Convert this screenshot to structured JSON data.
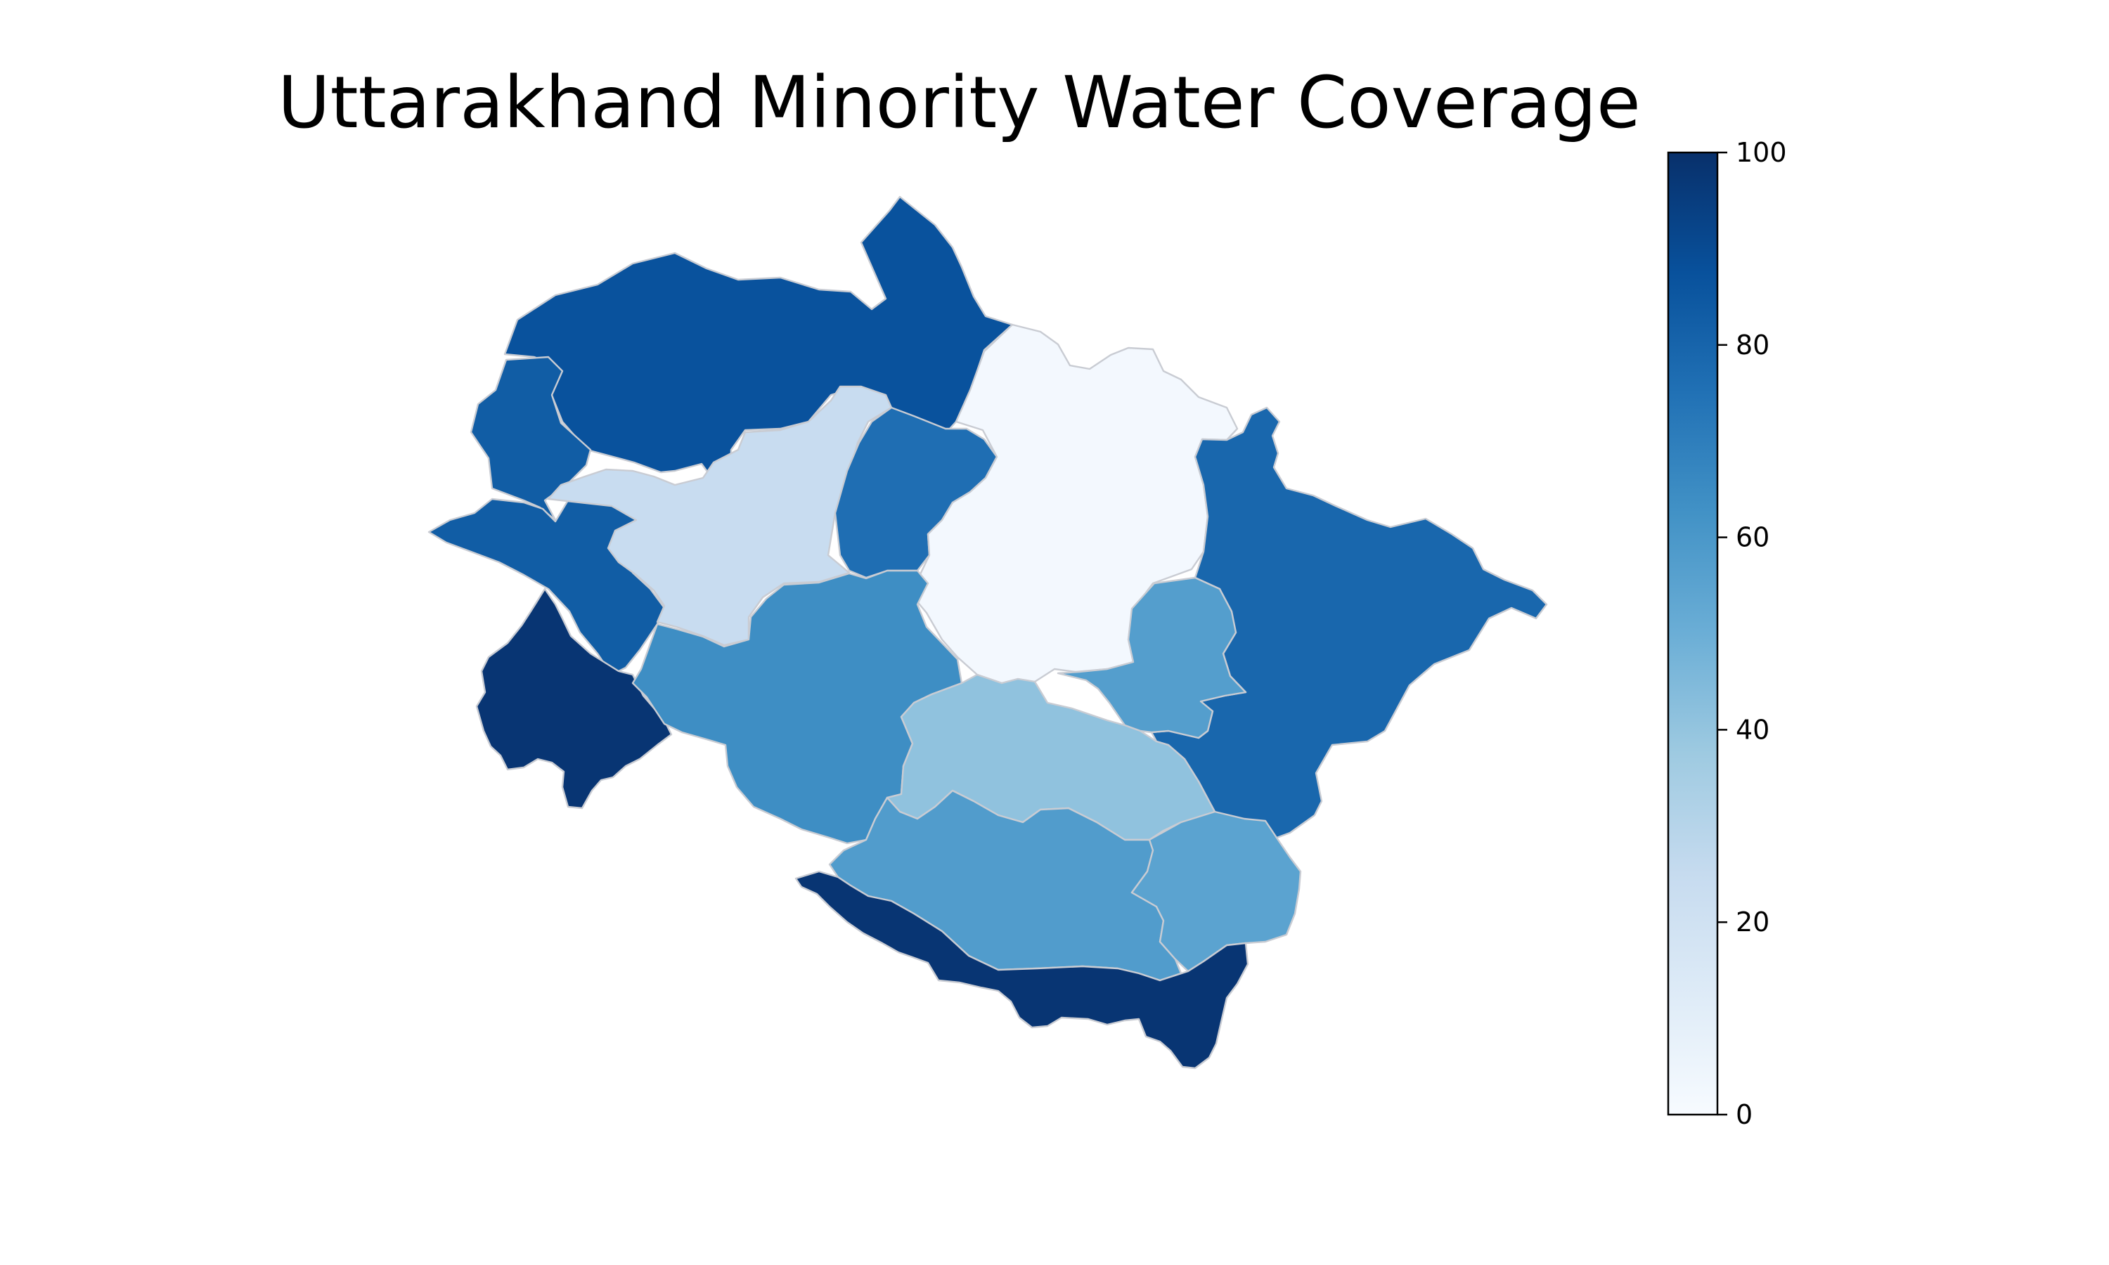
{
  "title": "Uttarakhand Minority Water Coverage",
  "colormap": "Blues",
  "value_range": [
    0,
    100
  ],
  "border_color": "#c9ccd3",
  "colorbar": {
    "orientation": "vertical",
    "position": "right",
    "ticks": [
      0,
      20,
      40,
      60,
      80,
      100
    ],
    "tick_labels": [
      "0",
      "20",
      "40",
      "60",
      "80",
      "100"
    ],
    "gradient": [
      "#f7fbff",
      "#deebf7",
      "#c6dbef",
      "#9ecae1",
      "#6baed6",
      "#4292c6",
      "#2171b5",
      "#08519c",
      "#08306b"
    ]
  },
  "regions": [
    {
      "id": "north-west-large",
      "value": 87
    },
    {
      "id": "far-west-upper",
      "value": 83
    },
    {
      "id": "far-west-middle",
      "value": 83
    },
    {
      "id": "west-light",
      "value": 24
    },
    {
      "id": "center-north-strip",
      "value": 76
    },
    {
      "id": "north-east-white",
      "value": 2
    },
    {
      "id": "east-large",
      "value": 79
    },
    {
      "id": "south-west-dark",
      "value": 98
    },
    {
      "id": "central-mid",
      "value": 64
    },
    {
      "id": "east-central-small",
      "value": 57
    },
    {
      "id": "central-south-pale",
      "value": 41
    },
    {
      "id": "south-central",
      "value": 58
    },
    {
      "id": "south-east-mid",
      "value": 55
    },
    {
      "id": "south-dark-strip",
      "value": 98
    }
  ]
}
